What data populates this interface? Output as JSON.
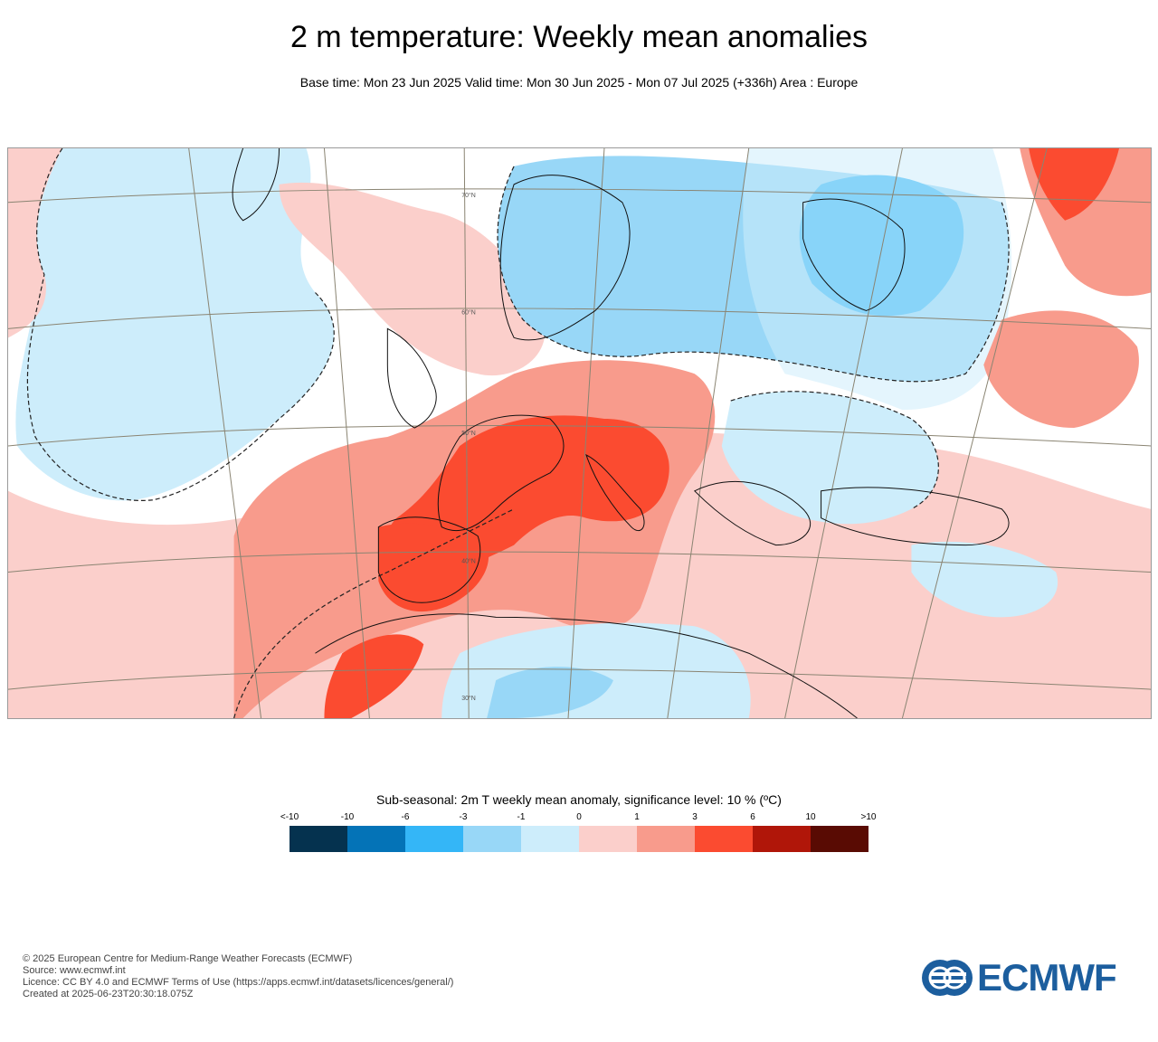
{
  "header": {
    "title": "2 m temperature: Weekly mean anomalies",
    "subtitle": "Base time: Mon 23 Jun 2025 Valid time: Mon 30 Jun 2025 - Mon 07 Jul 2025 (+336h) Area : Europe"
  },
  "map": {
    "region": "Europe",
    "graticule_labels": [
      "70°N",
      "60°N",
      "50°N",
      "40°N",
      "30°N"
    ]
  },
  "legend": {
    "title": "Sub-seasonal: 2m T weekly mean anomaly, significance level: 10 % (ºC)",
    "ticks": [
      "<-10",
      "-10",
      "-6",
      "-3",
      "-1",
      "0",
      "1",
      "3",
      "6",
      "10",
      ">10"
    ],
    "colors": [
      "#05324f",
      "#0473b7",
      "#34b6f7",
      "#98d7f7",
      "#cdedfb",
      "#fbcfcb",
      "#f89b8c",
      "#fb4b30",
      "#b01609",
      "#590b03"
    ]
  },
  "footer": {
    "lines": [
      "© 2025 European Centre for Medium-Range Weather Forecasts (ECMWF)",
      "Source: www.ecmwf.int",
      "Licence: CC BY 4.0 and ECMWF Terms of Use (https://apps.ecmwf.int/datasets/licences/general/)",
      "Created at 2025-06-23T20:30:18.075Z"
    ]
  },
  "logo": {
    "text": "ECMWF",
    "color": "#1c5e9e"
  }
}
